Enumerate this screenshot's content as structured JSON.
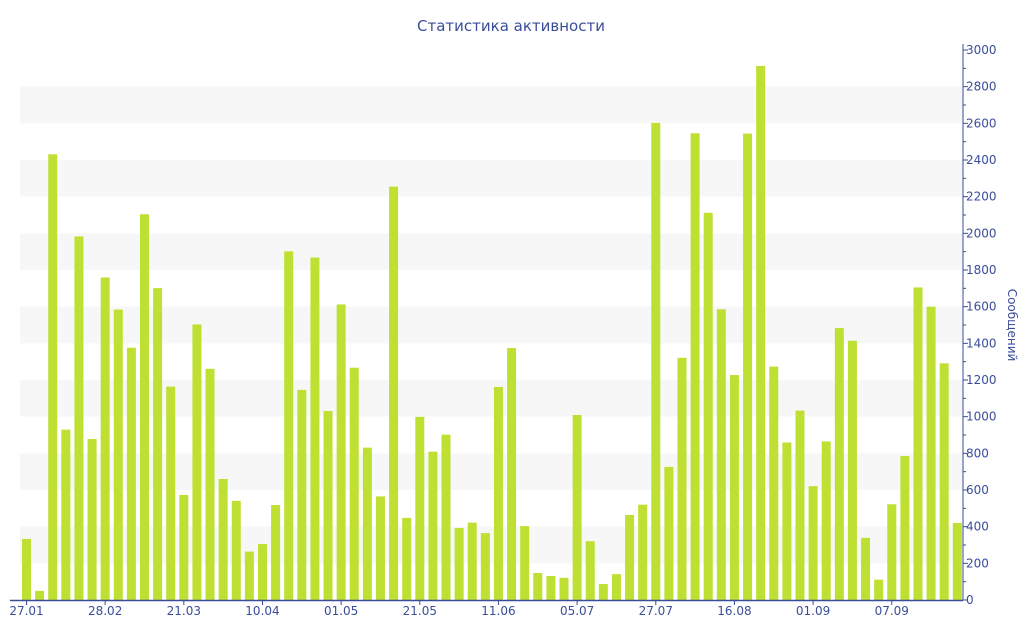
{
  "chart_data": {
    "type": "bar",
    "title": "Статистика активности",
    "xlabel": "",
    "ylabel": "Сообщений",
    "ylim": [
      0,
      3000
    ],
    "y_ticks": [
      0,
      200,
      400,
      600,
      800,
      1000,
      1200,
      1400,
      1600,
      1800,
      2000,
      2200,
      2400,
      2600,
      2800,
      3000
    ],
    "y_axis_side": "right",
    "grid": "alternating horizontal bands",
    "bar_color": "#bde032",
    "axis_color": "#3a4d9a",
    "band_color": "#f7f7f7",
    "x_tick_labels": [
      {
        "index": 0,
        "label": "27.01"
      },
      {
        "index": 6,
        "label": "28.02"
      },
      {
        "index": 12,
        "label": "21.03"
      },
      {
        "index": 18,
        "label": "10.04"
      },
      {
        "index": 24,
        "label": "01.05"
      },
      {
        "index": 30,
        "label": "21.05"
      },
      {
        "index": 36,
        "label": "11.06"
      },
      {
        "index": 42,
        "label": "05.07"
      },
      {
        "index": 48,
        "label": "27.07"
      },
      {
        "index": 54,
        "label": "16.08"
      },
      {
        "index": 60,
        "label": "01.09"
      },
      {
        "index": 66,
        "label": "07.09"
      }
    ],
    "values": [
      333,
      50,
      2431,
      929,
      1983,
      878,
      1759,
      1584,
      1376,
      2104,
      1701,
      1164,
      573,
      1503,
      1261,
      660,
      541,
      264,
      305,
      518,
      1902,
      1146,
      1868,
      1031,
      1612,
      1267,
      831,
      565,
      2255,
      448,
      999,
      809,
      902,
      393,
      422,
      365,
      1162,
      1374,
      403,
      147,
      131,
      121,
      1009,
      321,
      87,
      141,
      464,
      520,
      2602,
      726,
      1321,
      2546,
      2112,
      1586,
      1227,
      2544,
      2913,
      1273,
      859,
      1033,
      621,
      865,
      1483,
      1414,
      339,
      111,
      522,
      785,
      1705,
      1600,
      1291,
      420
    ]
  }
}
